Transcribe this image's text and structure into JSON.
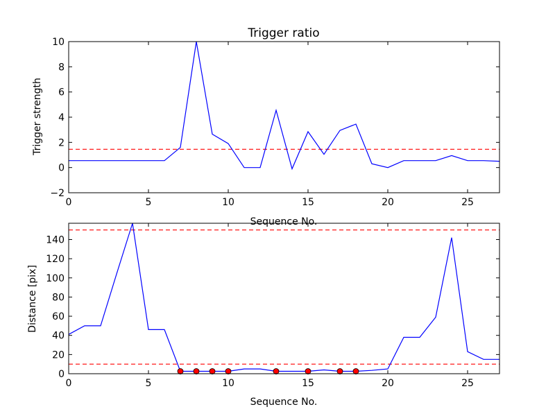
{
  "chart_data": [
    {
      "type": "line",
      "title": "Trigger ratio",
      "xlabel": "Sequence No.",
      "ylabel": "Trigger strength",
      "xlim": [
        0,
        27
      ],
      "ylim": [
        -2,
        10
      ],
      "xticks": [
        0,
        5,
        10,
        15,
        20,
        25
      ],
      "yticks": [
        -2,
        0,
        2,
        4,
        6,
        8,
        10
      ],
      "grid": false,
      "series": [
        {
          "color": "#0000ff",
          "style": "solid",
          "x": [
            0,
            1,
            2,
            3,
            4,
            5,
            6,
            7,
            8,
            9,
            10,
            11,
            12,
            13,
            14,
            15,
            16,
            17,
            18,
            19,
            20,
            21,
            22,
            23,
            24,
            25,
            26,
            27
          ],
          "y": [
            0.55,
            0.55,
            0.55,
            0.55,
            0.55,
            0.55,
            0.55,
            1.6,
            10.0,
            2.65,
            1.9,
            0.0,
            0.0,
            4.55,
            -0.1,
            2.85,
            1.05,
            2.95,
            3.45,
            0.3,
            0.0,
            0.55,
            0.55,
            0.55,
            0.95,
            0.55,
            0.55,
            0.5
          ]
        }
      ],
      "reference_lines": [
        {
          "y": 1.45,
          "color": "#ff0000",
          "style": "dashed"
        }
      ]
    },
    {
      "type": "line",
      "title": "",
      "xlabel": "Sequence No.",
      "ylabel": "Distance [pix]",
      "xlim": [
        0,
        27
      ],
      "ylim": [
        0,
        157
      ],
      "xticks": [
        0,
        5,
        10,
        15,
        20,
        25
      ],
      "yticks": [
        0,
        20,
        40,
        60,
        80,
        100,
        120,
        140
      ],
      "grid": false,
      "series": [
        {
          "color": "#0000ff",
          "style": "solid",
          "x": [
            0,
            1,
            2,
            3,
            4,
            5,
            6,
            7,
            8,
            9,
            10,
            11,
            12,
            13,
            14,
            15,
            16,
            17,
            18,
            19,
            20,
            21,
            22,
            23,
            24,
            25,
            26,
            27
          ],
          "y": [
            41,
            50,
            50,
            104,
            157,
            46,
            46,
            2.5,
            2.5,
            2.5,
            2.5,
            5,
            5,
            2.5,
            2.5,
            2.5,
            4,
            2.5,
            2.5,
            3.5,
            5,
            38,
            38,
            59,
            142,
            23,
            15,
            15
          ]
        }
      ],
      "markers": {
        "color": "#ff0000",
        "shape": "circle",
        "x": [
          7,
          8,
          9,
          10,
          13,
          15,
          17,
          18
        ],
        "y": [
          2.5,
          2.5,
          2.5,
          2.5,
          2.5,
          2.5,
          2.5,
          2.5
        ]
      },
      "reference_lines": [
        {
          "y": 150,
          "color": "#ff0000",
          "style": "dashed"
        },
        {
          "y": 10,
          "color": "#ff0000",
          "style": "dashed"
        }
      ]
    }
  ]
}
